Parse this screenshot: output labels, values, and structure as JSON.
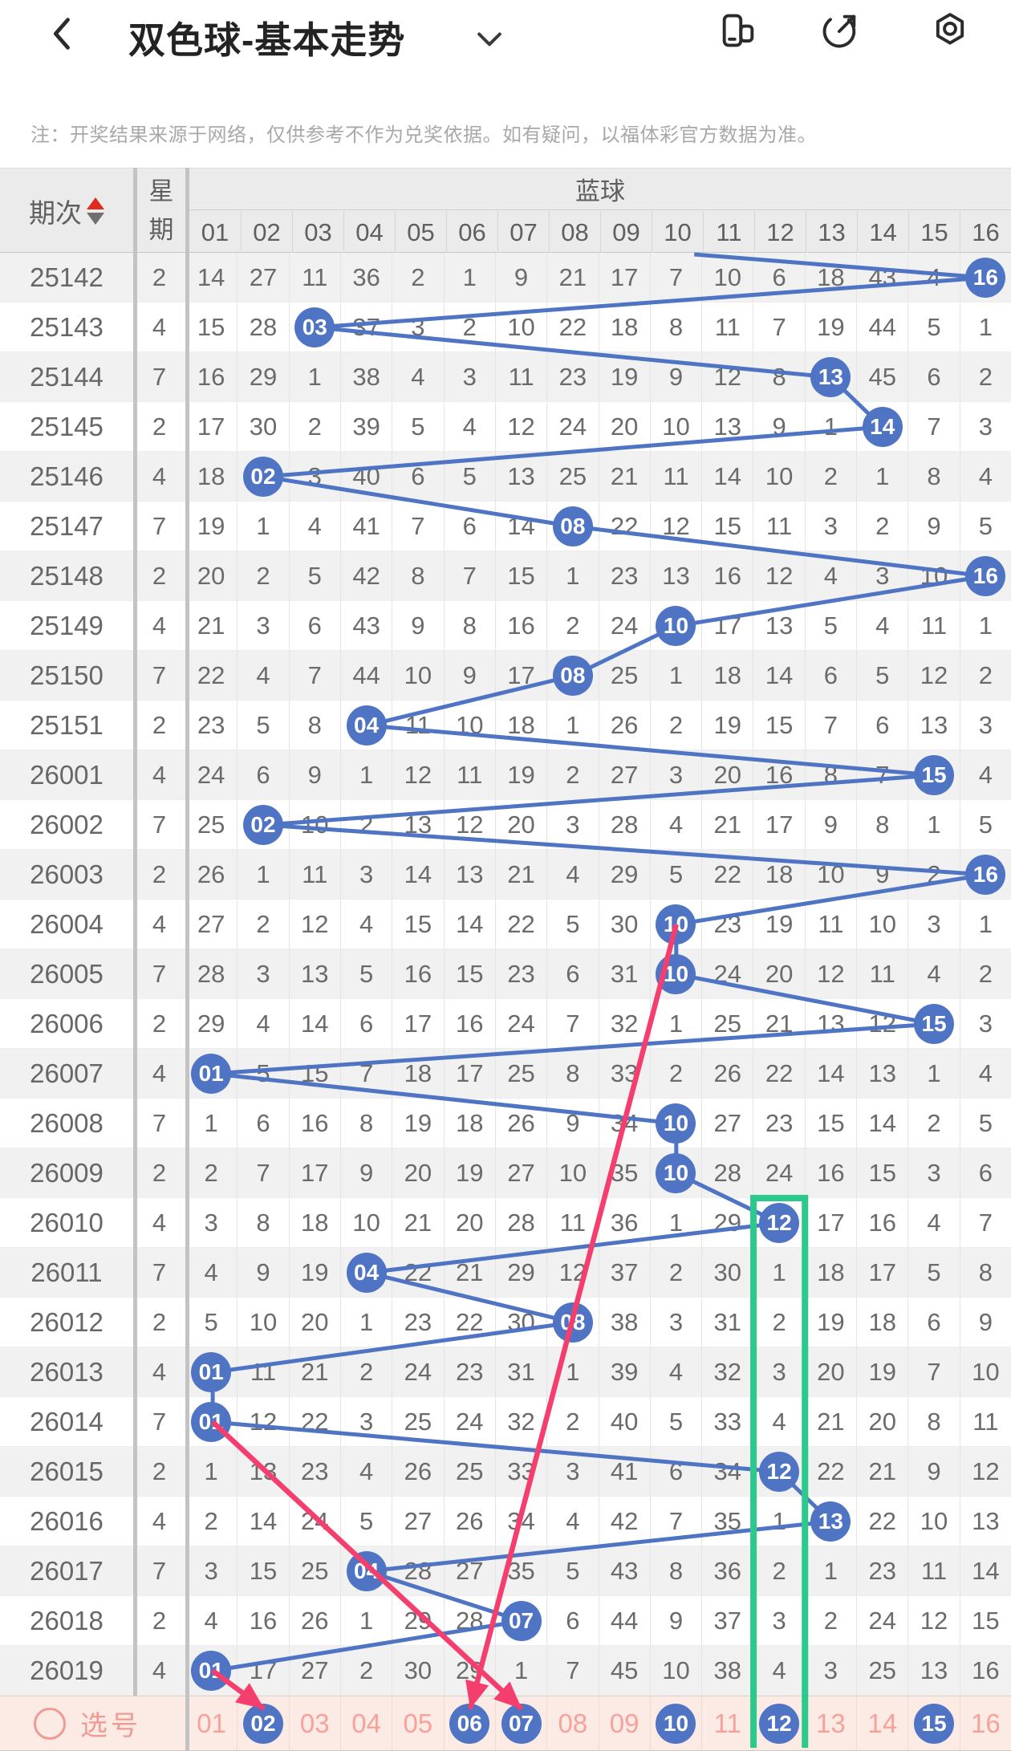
{
  "nav": {
    "title": "双色球-基本走势",
    "back_icon": "back",
    "dropdown_icon": "chevron-down",
    "right_icons": [
      "floating-window",
      "share-external",
      "settings-nut"
    ]
  },
  "notice": "注：开奖结果来源于网络，仅供参考不作为兑奖依据。如有疑问，以福体彩官方数据为准。",
  "table": {
    "header": {
      "period_label": "期次",
      "week_label": "星期",
      "group_label": "蓝球",
      "columns": [
        "01",
        "02",
        "03",
        "04",
        "05",
        "06",
        "07",
        "08",
        "09",
        "10",
        "11",
        "12",
        "13",
        "14",
        "15",
        "16"
      ]
    },
    "rows": [
      {
        "period": "25142",
        "week": "2",
        "ball": 16,
        "cells": [
          "14",
          "27",
          "11",
          "36",
          "2",
          "1",
          "9",
          "21",
          "17",
          "7",
          "10",
          "6",
          "18",
          "43",
          "4",
          "16"
        ]
      },
      {
        "period": "25143",
        "week": "4",
        "ball": 3,
        "cells": [
          "15",
          "28",
          "03",
          "37",
          "3",
          "2",
          "10",
          "22",
          "18",
          "8",
          "11",
          "7",
          "19",
          "44",
          "5",
          "1"
        ]
      },
      {
        "period": "25144",
        "week": "7",
        "ball": 13,
        "cells": [
          "16",
          "29",
          "1",
          "38",
          "4",
          "3",
          "11",
          "23",
          "19",
          "9",
          "12",
          "8",
          "13",
          "45",
          "6",
          "2"
        ]
      },
      {
        "period": "25145",
        "week": "2",
        "ball": 14,
        "cells": [
          "17",
          "30",
          "2",
          "39",
          "5",
          "4",
          "12",
          "24",
          "20",
          "10",
          "13",
          "9",
          "1",
          "14",
          "7",
          "3"
        ]
      },
      {
        "period": "25146",
        "week": "4",
        "ball": 2,
        "cells": [
          "18",
          "02",
          "3",
          "40",
          "6",
          "5",
          "13",
          "25",
          "21",
          "11",
          "14",
          "10",
          "2",
          "1",
          "8",
          "4"
        ]
      },
      {
        "period": "25147",
        "week": "7",
        "ball": 8,
        "cells": [
          "19",
          "1",
          "4",
          "41",
          "7",
          "6",
          "14",
          "08",
          "22",
          "12",
          "15",
          "11",
          "3",
          "2",
          "9",
          "5"
        ]
      },
      {
        "period": "25148",
        "week": "2",
        "ball": 16,
        "cells": [
          "20",
          "2",
          "5",
          "42",
          "8",
          "7",
          "15",
          "1",
          "23",
          "13",
          "16",
          "12",
          "4",
          "3",
          "10",
          "16"
        ]
      },
      {
        "period": "25149",
        "week": "4",
        "ball": 10,
        "cells": [
          "21",
          "3",
          "6",
          "43",
          "9",
          "8",
          "16",
          "2",
          "24",
          "10",
          "17",
          "13",
          "5",
          "4",
          "11",
          "1"
        ]
      },
      {
        "period": "25150",
        "week": "7",
        "ball": 8,
        "cells": [
          "22",
          "4",
          "7",
          "44",
          "10",
          "9",
          "17",
          "08",
          "25",
          "1",
          "18",
          "14",
          "6",
          "5",
          "12",
          "2"
        ]
      },
      {
        "period": "25151",
        "week": "2",
        "ball": 4,
        "cells": [
          "23",
          "5",
          "8",
          "04",
          "11",
          "10",
          "18",
          "1",
          "26",
          "2",
          "19",
          "15",
          "7",
          "6",
          "13",
          "3"
        ]
      },
      {
        "period": "26001",
        "week": "4",
        "ball": 15,
        "cells": [
          "24",
          "6",
          "9",
          "1",
          "12",
          "11",
          "19",
          "2",
          "27",
          "3",
          "20",
          "16",
          "8",
          "7",
          "15",
          "4"
        ]
      },
      {
        "period": "26002",
        "week": "7",
        "ball": 2,
        "cells": [
          "25",
          "02",
          "10",
          "2",
          "13",
          "12",
          "20",
          "3",
          "28",
          "4",
          "21",
          "17",
          "9",
          "8",
          "1",
          "5"
        ]
      },
      {
        "period": "26003",
        "week": "2",
        "ball": 16,
        "cells": [
          "26",
          "1",
          "11",
          "3",
          "14",
          "13",
          "21",
          "4",
          "29",
          "5",
          "22",
          "18",
          "10",
          "9",
          "2",
          "16"
        ]
      },
      {
        "period": "26004",
        "week": "4",
        "ball": 10,
        "cells": [
          "27",
          "2",
          "12",
          "4",
          "15",
          "14",
          "22",
          "5",
          "30",
          "10",
          "23",
          "19",
          "11",
          "10",
          "3",
          "1"
        ]
      },
      {
        "period": "26005",
        "week": "7",
        "ball": 10,
        "cells": [
          "28",
          "3",
          "13",
          "5",
          "16",
          "15",
          "23",
          "6",
          "31",
          "10",
          "24",
          "20",
          "12",
          "11",
          "4",
          "2"
        ]
      },
      {
        "period": "26006",
        "week": "2",
        "ball": 15,
        "cells": [
          "29",
          "4",
          "14",
          "6",
          "17",
          "16",
          "24",
          "7",
          "32",
          "1",
          "25",
          "21",
          "13",
          "12",
          "15",
          "3"
        ]
      },
      {
        "period": "26007",
        "week": "4",
        "ball": 1,
        "cells": [
          "01",
          "5",
          "15",
          "7",
          "18",
          "17",
          "25",
          "8",
          "33",
          "2",
          "26",
          "22",
          "14",
          "13",
          "1",
          "4"
        ]
      },
      {
        "period": "26008",
        "week": "7",
        "ball": 10,
        "cells": [
          "1",
          "6",
          "16",
          "8",
          "19",
          "18",
          "26",
          "9",
          "34",
          "10",
          "27",
          "23",
          "15",
          "14",
          "2",
          "5"
        ]
      },
      {
        "period": "26009",
        "week": "2",
        "ball": 10,
        "cells": [
          "2",
          "7",
          "17",
          "9",
          "20",
          "19",
          "27",
          "10",
          "35",
          "10",
          "28",
          "24",
          "16",
          "15",
          "3",
          "6"
        ]
      },
      {
        "period": "26010",
        "week": "4",
        "ball": 12,
        "cells": [
          "3",
          "8",
          "18",
          "10",
          "21",
          "20",
          "28",
          "11",
          "36",
          "1",
          "29",
          "12",
          "17",
          "16",
          "4",
          "7"
        ]
      },
      {
        "period": "26011",
        "week": "7",
        "ball": 4,
        "cells": [
          "4",
          "9",
          "19",
          "04",
          "22",
          "21",
          "29",
          "12",
          "37",
          "2",
          "30",
          "1",
          "18",
          "17",
          "5",
          "8"
        ]
      },
      {
        "period": "26012",
        "week": "2",
        "ball": 8,
        "cells": [
          "5",
          "10",
          "20",
          "1",
          "23",
          "22",
          "30",
          "08",
          "38",
          "3",
          "31",
          "2",
          "19",
          "18",
          "6",
          "9"
        ]
      },
      {
        "period": "26013",
        "week": "4",
        "ball": 1,
        "cells": [
          "01",
          "11",
          "21",
          "2",
          "24",
          "23",
          "31",
          "1",
          "39",
          "4",
          "32",
          "3",
          "20",
          "19",
          "7",
          "10"
        ]
      },
      {
        "period": "26014",
        "week": "7",
        "ball": 1,
        "cells": [
          "01",
          "12",
          "22",
          "3",
          "25",
          "24",
          "32",
          "2",
          "40",
          "5",
          "33",
          "4",
          "21",
          "20",
          "8",
          "11"
        ]
      },
      {
        "period": "26015",
        "week": "2",
        "ball": 12,
        "cells": [
          "1",
          "13",
          "23",
          "4",
          "26",
          "25",
          "33",
          "3",
          "41",
          "6",
          "34",
          "12",
          "22",
          "21",
          "9",
          "12"
        ]
      },
      {
        "period": "26016",
        "week": "4",
        "ball": 13,
        "cells": [
          "2",
          "14",
          "24",
          "5",
          "27",
          "26",
          "34",
          "4",
          "42",
          "7",
          "35",
          "1",
          "13",
          "22",
          "10",
          "13"
        ]
      },
      {
        "period": "26017",
        "week": "7",
        "ball": 4,
        "cells": [
          "3",
          "15",
          "25",
          "04",
          "28",
          "27",
          "35",
          "5",
          "43",
          "8",
          "36",
          "2",
          "1",
          "23",
          "11",
          "14"
        ]
      },
      {
        "period": "26018",
        "week": "2",
        "ball": 7,
        "cells": [
          "4",
          "16",
          "26",
          "1",
          "29",
          "28",
          "07",
          "6",
          "44",
          "9",
          "37",
          "3",
          "2",
          "24",
          "12",
          "15"
        ]
      },
      {
        "period": "26019",
        "week": "4",
        "ball": 1,
        "cells": [
          "01",
          "17",
          "27",
          "2",
          "30",
          "29",
          "1",
          "7",
          "45",
          "10",
          "38",
          "4",
          "3",
          "25",
          "13",
          "16"
        ]
      }
    ]
  },
  "select_row": {
    "label": "选号",
    "numbers": [
      "01",
      "02",
      "03",
      "04",
      "05",
      "06",
      "07",
      "08",
      "09",
      "10",
      "11",
      "12",
      "13",
      "14",
      "15",
      "16"
    ],
    "selected": [
      "02",
      "06",
      "07",
      "10",
      "12",
      "15"
    ]
  },
  "annotations": {
    "trend_color": "#4f74c4",
    "incoming_line_from_column": 9.85,
    "highlight_column": {
      "column": 12,
      "from_period": "26010",
      "color": "#2bc98c"
    },
    "arrow_color": "#f43e6e",
    "arrows": [
      {
        "from_period": "26004",
        "to_select": "06"
      },
      {
        "from_period": "26014",
        "to_select": "07"
      },
      {
        "from_period": "26019",
        "to_select": "02"
      }
    ]
  }
}
